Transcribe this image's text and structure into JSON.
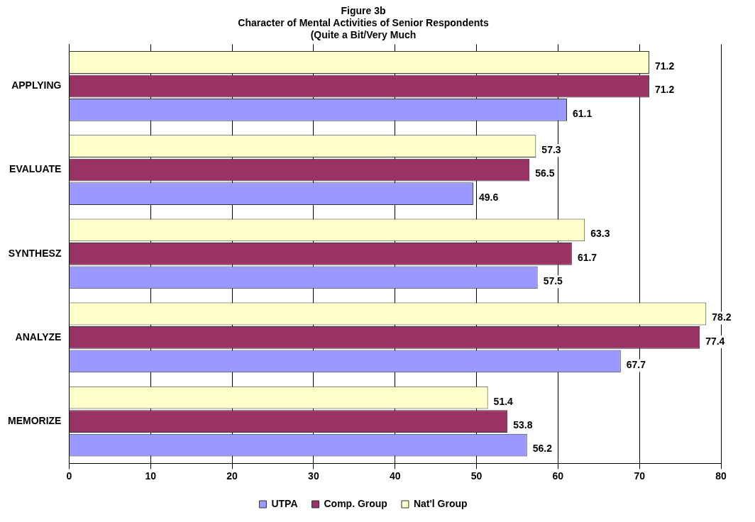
{
  "chart_data": {
    "type": "bar",
    "orientation": "horizontal",
    "title": "Figure 3b\nCharacter of Mental Activities of Senior Respondents\n(Quite a Bit/Very Much",
    "categories": [
      "APPLYING",
      "EVALUATE",
      "SYNTHESZ",
      "ANALYZE",
      "MEMORIZE"
    ],
    "series": [
      {
        "name": "UTPA",
        "color": "#9999ff",
        "values": [
          61.1,
          49.6,
          57.5,
          67.7,
          56.2
        ]
      },
      {
        "name": "Comp. Group",
        "color": "#993366",
        "values": [
          71.2,
          56.5,
          61.7,
          77.4,
          53.8
        ]
      },
      {
        "name": "Nat'l Group",
        "color": "#ffffcc",
        "values": [
          71.2,
          57.3,
          63.3,
          78.2,
          51.4
        ]
      }
    ],
    "xlim": [
      0,
      80
    ],
    "xticks": [
      0,
      10,
      20,
      30,
      40,
      50,
      60,
      70,
      80
    ],
    "grid": "x",
    "legend": "bottom",
    "data_labels": true
  }
}
